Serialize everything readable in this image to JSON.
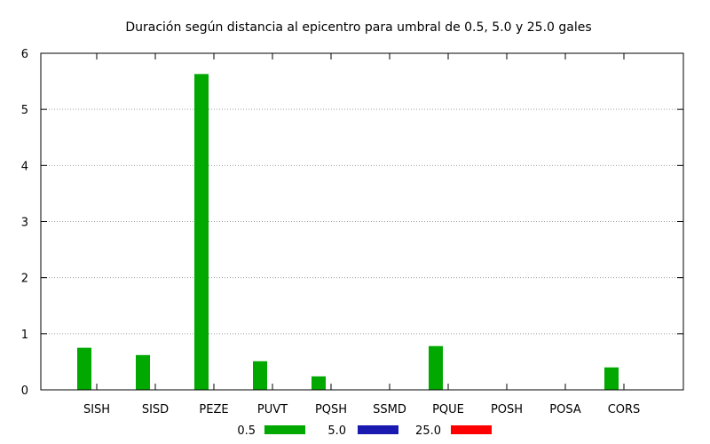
{
  "chart_data": {
    "type": "bar",
    "title": "Duración según distancia al epicentro para umbral de 0.5, 5.0 y 25.0 gales",
    "xlabel": "",
    "ylabel": "",
    "categories": [
      "SISH",
      "SISD",
      "PEZE",
      "PUVT",
      "PQSH",
      "SSMD",
      "PQUE",
      "POSH",
      "POSA",
      "CORS"
    ],
    "ylim": [
      0,
      6
    ],
    "yticks": [
      "0",
      "1",
      "2",
      "3",
      "4",
      "5",
      "6"
    ],
    "grid": true,
    "legend_position": "bottom",
    "series": [
      {
        "name": "0.5",
        "color": "#00a800",
        "values": [
          0.75,
          0.62,
          5.63,
          0.51,
          0.24,
          0,
          0.78,
          0,
          0,
          0.4
        ]
      },
      {
        "name": "5.0",
        "color": "#1a1ab0",
        "values": [
          0,
          0,
          0,
          0,
          0,
          0,
          0,
          0,
          0,
          0
        ]
      },
      {
        "name": "25.0",
        "color": "#ff0000",
        "values": [
          0,
          0,
          0,
          0,
          0,
          0,
          0,
          0,
          0,
          0
        ]
      }
    ]
  }
}
